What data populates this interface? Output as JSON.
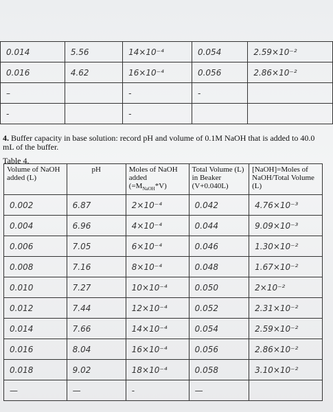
{
  "top_table": {
    "rows": [
      [
        "0.014",
        "5.56",
        "14×10⁻⁴",
        "0.054",
        "2.59×10⁻²"
      ],
      [
        "0.016",
        "4.62",
        "16×10⁻⁴",
        "0.056",
        "2.86×10⁻²"
      ],
      [
        "–",
        null,
        "-",
        "-",
        null
      ],
      [
        "-",
        null,
        "-",
        null,
        null
      ]
    ]
  },
  "section": {
    "number": "4.",
    "text": "Buffer capacity in base solution: record pH and volume of 0.1M NaOH that is added to 40.0 mL of the buffer."
  },
  "table": {
    "caption": "Table 4.",
    "header": [
      "Volume of NaOH added (L)",
      "pH",
      {
        "text": "Moles of NaOH added (=M",
        "sub": "NaOH",
        "tail": "*V)"
      },
      "Total Volume (L) in Beaker (V+0.040L)",
      "[NaOH]=Moles of NaOH/Total Volume (L)"
    ],
    "rows": [
      [
        "0.002",
        "6.87",
        "2×10⁻⁴",
        "0.042",
        "4.76×10⁻³"
      ],
      [
        "0.004",
        "6.96",
        "4×10⁻⁴",
        "0.044",
        "9.09×10⁻³"
      ],
      [
        "0.006",
        "7.05",
        "6×10⁻⁴",
        "0.046",
        "1.30×10⁻²"
      ],
      [
        "0.008",
        "7.16",
        "8×10⁻⁴",
        "0.048",
        "1.67×10⁻²"
      ],
      [
        "0.010",
        "7.27",
        "10×10⁻⁴",
        "0.050",
        "2×10⁻²"
      ],
      [
        "0.012",
        "7.44",
        "12×10⁻⁴",
        "0.052",
        "2.31×10⁻²"
      ],
      [
        "0.014",
        "7.66",
        "14×10⁻⁴",
        "0.054",
        "2.59×10⁻²"
      ],
      [
        "0.016",
        "8.04",
        "16×10⁻⁴",
        "0.056",
        "2.86×10⁻²"
      ],
      [
        "0.018",
        "9.02",
        "18×10⁻⁴",
        "0.058",
        "3.10×10⁻²"
      ],
      [
        "—",
        "—",
        "-",
        "—",
        null
      ]
    ]
  }
}
